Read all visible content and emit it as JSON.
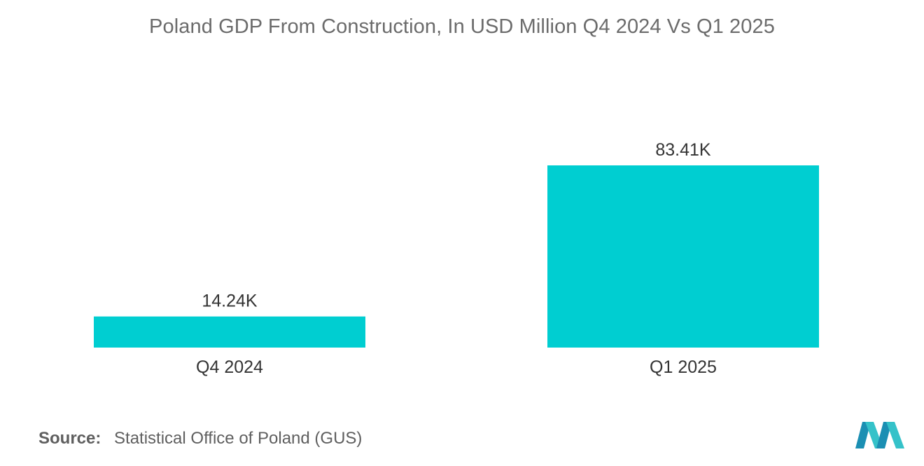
{
  "title": "Poland GDP From Construction, In USD Million Q4 2024 Vs Q1 2025",
  "source": {
    "label": "Source:",
    "text": "Statistical Office of Poland (GUS)"
  },
  "colors": {
    "bar": "#00CED1",
    "text": "#333333",
    "title": "#6b6b6b"
  },
  "chart_data": {
    "type": "bar",
    "categories": [
      "Q4 2024",
      "Q1 2025"
    ],
    "values": [
      14.24,
      83.41
    ],
    "value_labels": [
      "14.24K",
      "83.41K"
    ],
    "title": "Poland GDP From Construction, In USD Million Q4 2024 Vs Q1 2025",
    "xlabel": "",
    "ylabel": "",
    "ylim": [
      0,
      83.41
    ],
    "grid": false,
    "legend": "none"
  }
}
